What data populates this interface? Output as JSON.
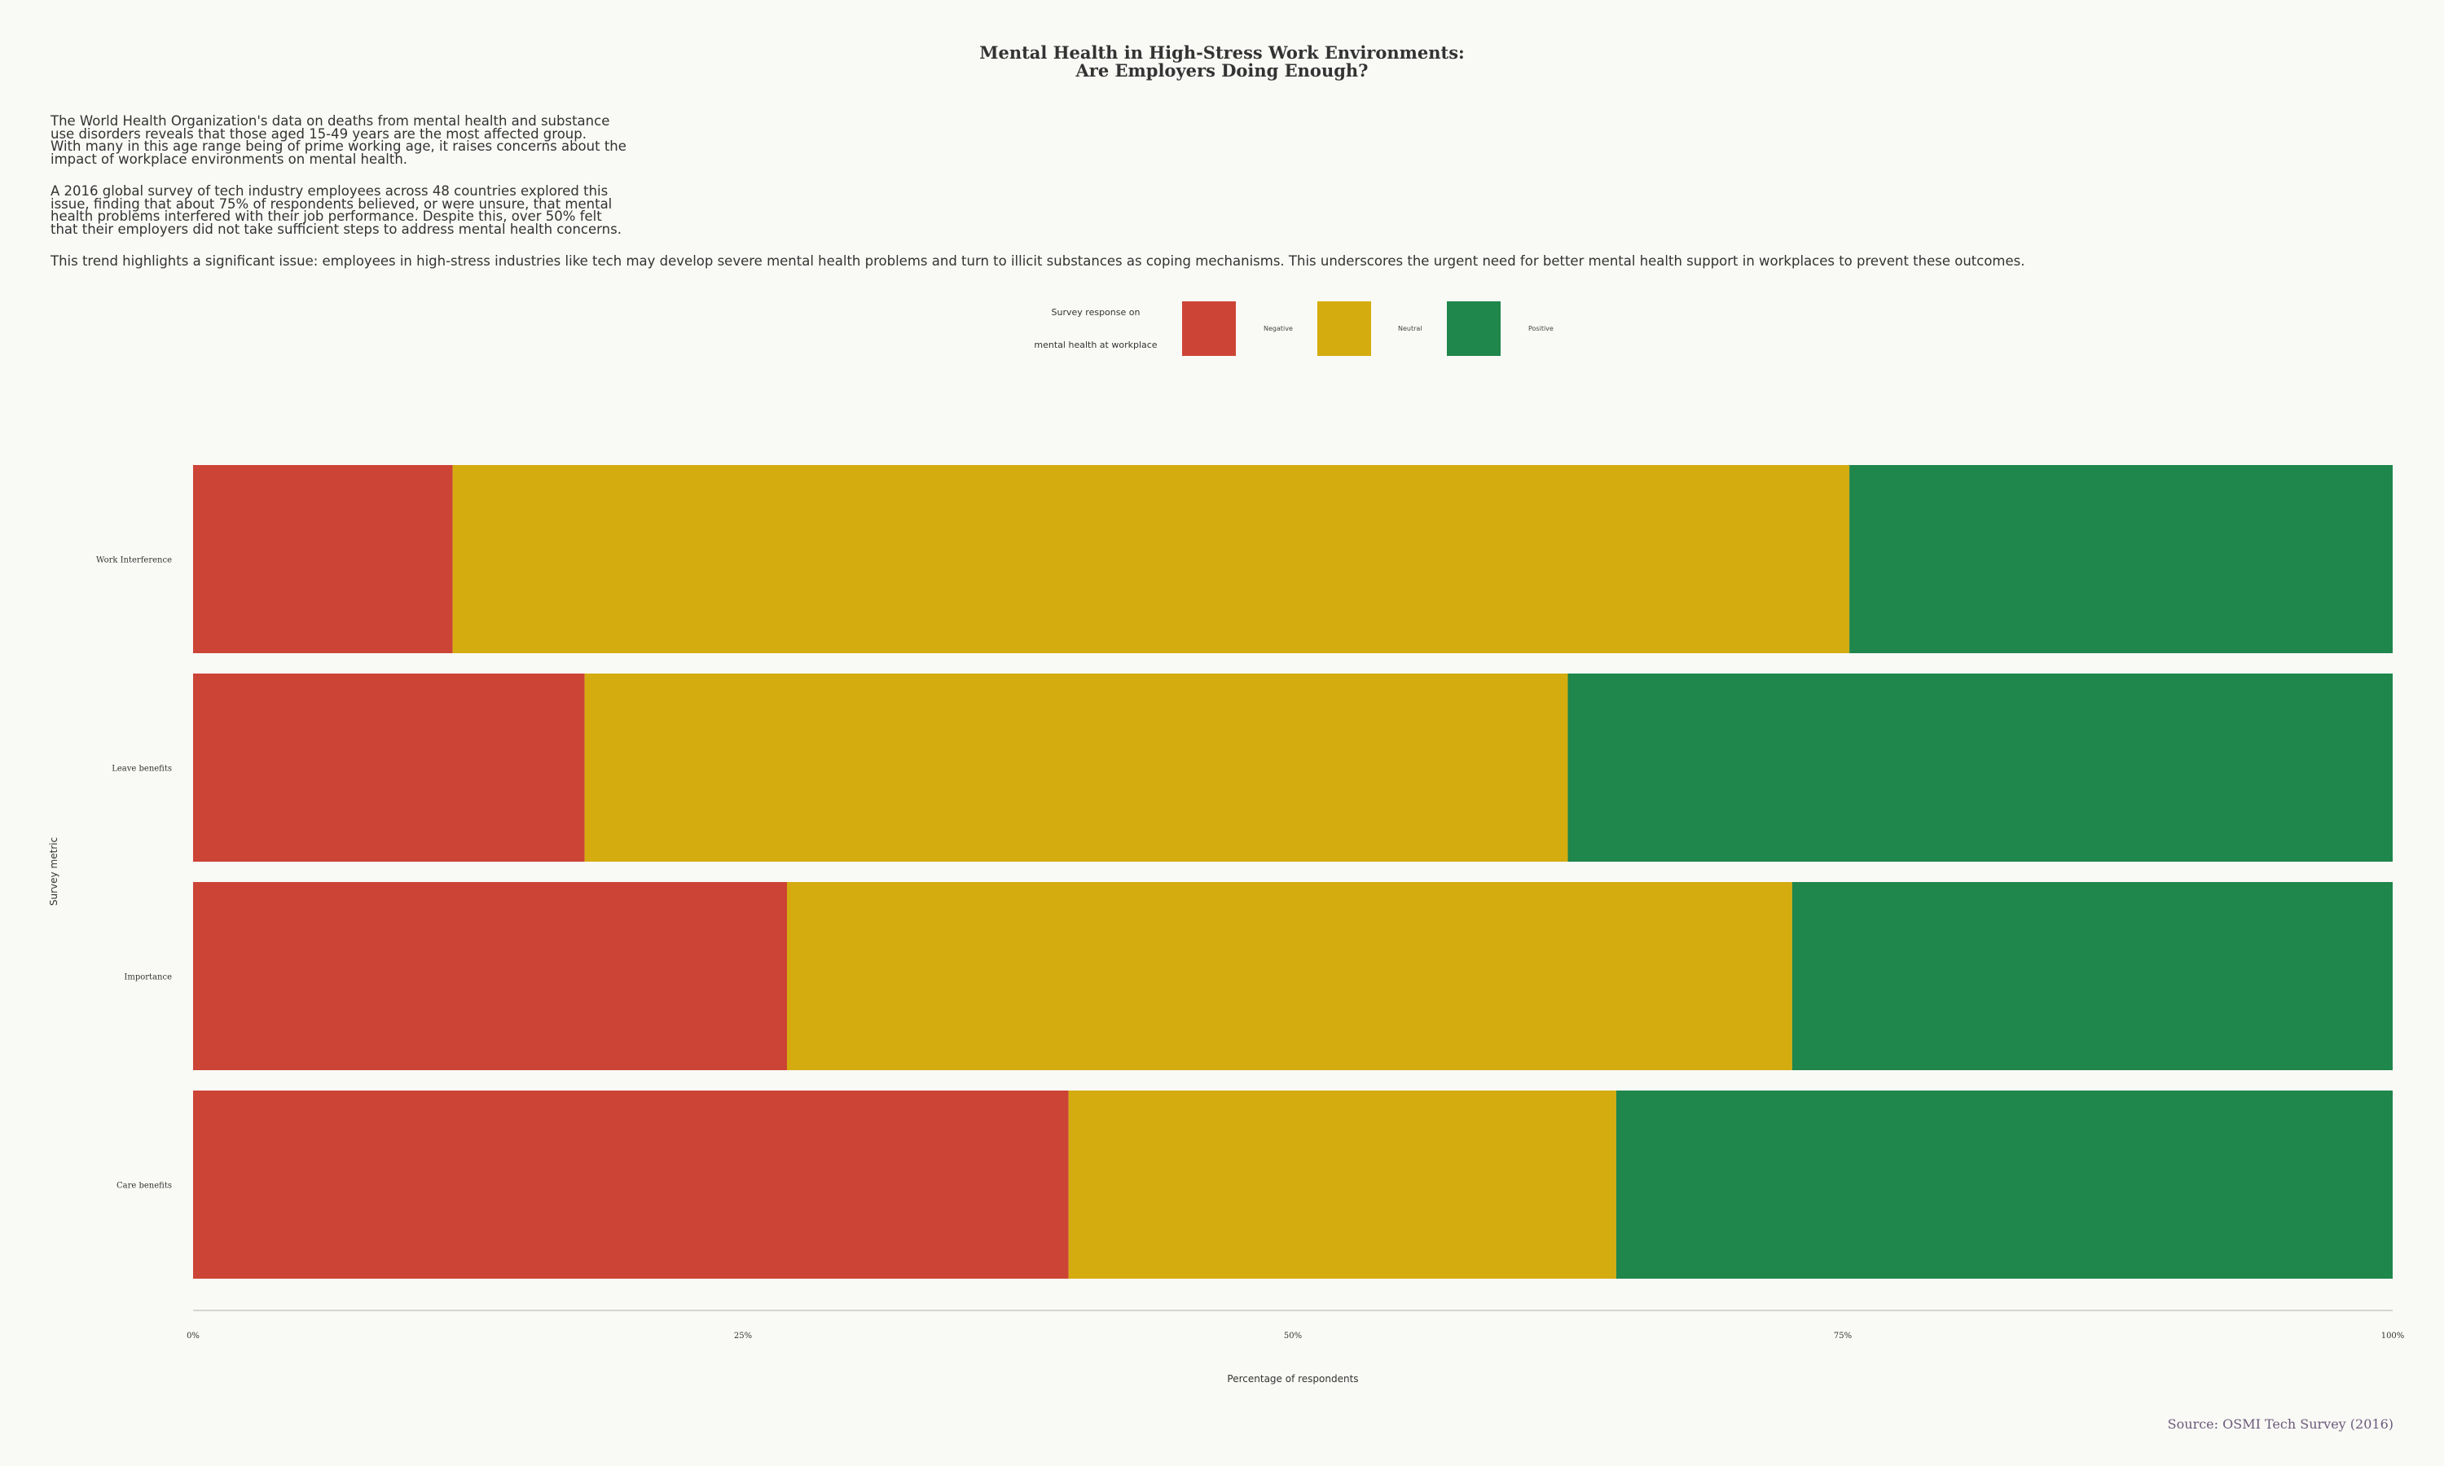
{
  "title_line1": "Mental Health in High-Stress Work Environments:",
  "title_line2": "Are Employers Doing Enough?",
  "intro": {
    "p1": "The World Health Organization's data on deaths from mental health and substance\nuse disorders reveals that those aged 15-49 years are the most affected group.\nWith many in this age range being of prime working age, it raises concerns about the\nimpact of workplace environments on mental health.",
    "p2": "A 2016 global survey of tech industry employees across 48 countries explored this\nissue, finding that about 75% of respondents believed, or were unsure, that mental\nhealth problems interfered with their job performance. Despite this, over 50% felt\nthat their employers did not take sufficient steps to address mental health concerns.",
    "p3": "This trend highlights a significant issue: employees in high-stress industries like tech may develop severe mental health problems and turn to illicit substances as coping mechanisms. This underscores the urgent need for better mental health support in workplaces to prevent these outcomes."
  },
  "legend": {
    "title_line1": "Survey response on",
    "title_line2": "mental health at workplace",
    "position": "top-center"
  },
  "source": "Source: OSMI Tech Survey (2016)",
  "colors": {
    "Negative": "#cc4436",
    "Neutral": "#d4ac0f",
    "Positive": "#1f864c"
  },
  "chart_data": {
    "type": "bar",
    "orientation": "horizontal",
    "stacked": true,
    "categories": [
      "Work Interference",
      "Leave benefits",
      "Importance",
      "Care benefits"
    ],
    "series": [
      {
        "name": "Negative",
        "values": [
          11.8,
          17.8,
          27.0,
          39.8
        ]
      },
      {
        "name": "Neutral",
        "values": [
          63.5,
          44.7,
          45.7,
          24.9
        ]
      },
      {
        "name": "Positive",
        "values": [
          24.7,
          37.5,
          27.3,
          35.3
        ]
      }
    ],
    "xlabel": "Percentage of respondents",
    "ylabel": "Survey metric",
    "xlim": [
      0,
      100
    ],
    "xticks": [
      "0%",
      "25%",
      "50%",
      "75%",
      "100%"
    ],
    "grid": false
  }
}
